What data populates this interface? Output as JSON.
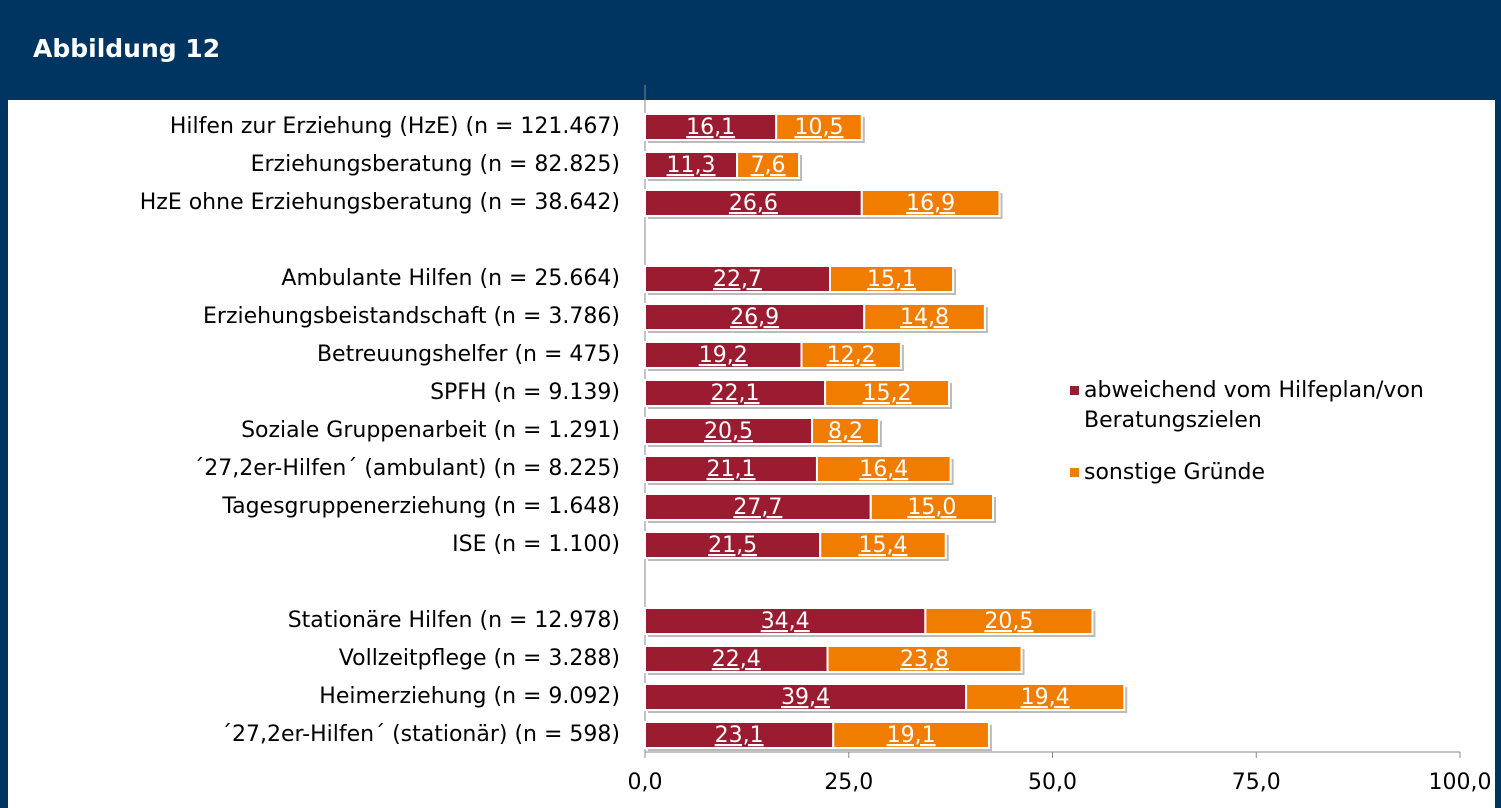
{
  "chart_data": {
    "type": "stacked-bar-horizontal",
    "title": "Abbildung 12",
    "categories": [
      "Hilfen zur Erziehung (HzE) (n = 121.467)",
      "Erziehungsberatung (n = 82.825)",
      "HzE ohne Erziehungsberatung (n = 38.642)",
      null,
      "Ambulante Hilfen (n = 25.664)",
      "Erziehungsbeistandschaft (n = 3.786)",
      "Betreuungshelfer (n = 475)",
      "SPFH (n = 9.139)",
      "Soziale Gruppenarbeit (n = 1.291)",
      "´27,2er-Hilfen´ (ambulant) (n = 8.225)",
      "Tagesgruppenerziehung (n = 1.648)",
      "ISE (n = 1.100)",
      null,
      "Stationäre Hilfen (n = 12.978)",
      "Vollzeitpflege (n = 3.288)",
      "Heimerziehung (n = 9.092)",
      "´27,2er-Hilfen´ (stationär) (n = 598)"
    ],
    "series": [
      {
        "name": "abweichend vom Hilfeplan/von Beratungszielen",
        "color": "#9b1b30",
        "values": [
          16.1,
          11.3,
          26.6,
          null,
          22.7,
          26.9,
          19.2,
          22.1,
          20.5,
          21.1,
          27.7,
          21.5,
          null,
          34.4,
          22.4,
          39.4,
          23.1
        ],
        "value_labels": [
          "16,1",
          "11,3",
          "26,6",
          null,
          "22,7",
          "26,9",
          "19,2",
          "22,1",
          "20,5",
          "21,1",
          "27,7",
          "21,5",
          null,
          "34,4",
          "22,4",
          "39,4",
          "23,1"
        ]
      },
      {
        "name": "sonstige Gründe",
        "color": "#f07d00",
        "values": [
          10.5,
          7.6,
          16.9,
          null,
          15.1,
          14.8,
          12.2,
          15.2,
          8.2,
          16.4,
          15.0,
          15.4,
          null,
          20.5,
          23.8,
          19.4,
          19.1
        ],
        "value_labels": [
          "10,5",
          "7,6",
          "16,9",
          null,
          "15,1",
          "14,8",
          "12,2",
          "15,2",
          "8,2",
          "16,4",
          "15,0",
          "15,4",
          null,
          "20,5",
          "23,8",
          "19,4",
          "19,1"
        ]
      }
    ],
    "xlim": [
      0,
      100
    ],
    "xticks": [
      {
        "value": 0,
        "label": "0,0"
      },
      {
        "value": 25,
        "label": "25,0"
      },
      {
        "value": 50,
        "label": "50,0"
      },
      {
        "value": 75,
        "label": "75,0"
      },
      {
        "value": 100,
        "label": "100,0"
      }
    ],
    "legend": "right"
  }
}
